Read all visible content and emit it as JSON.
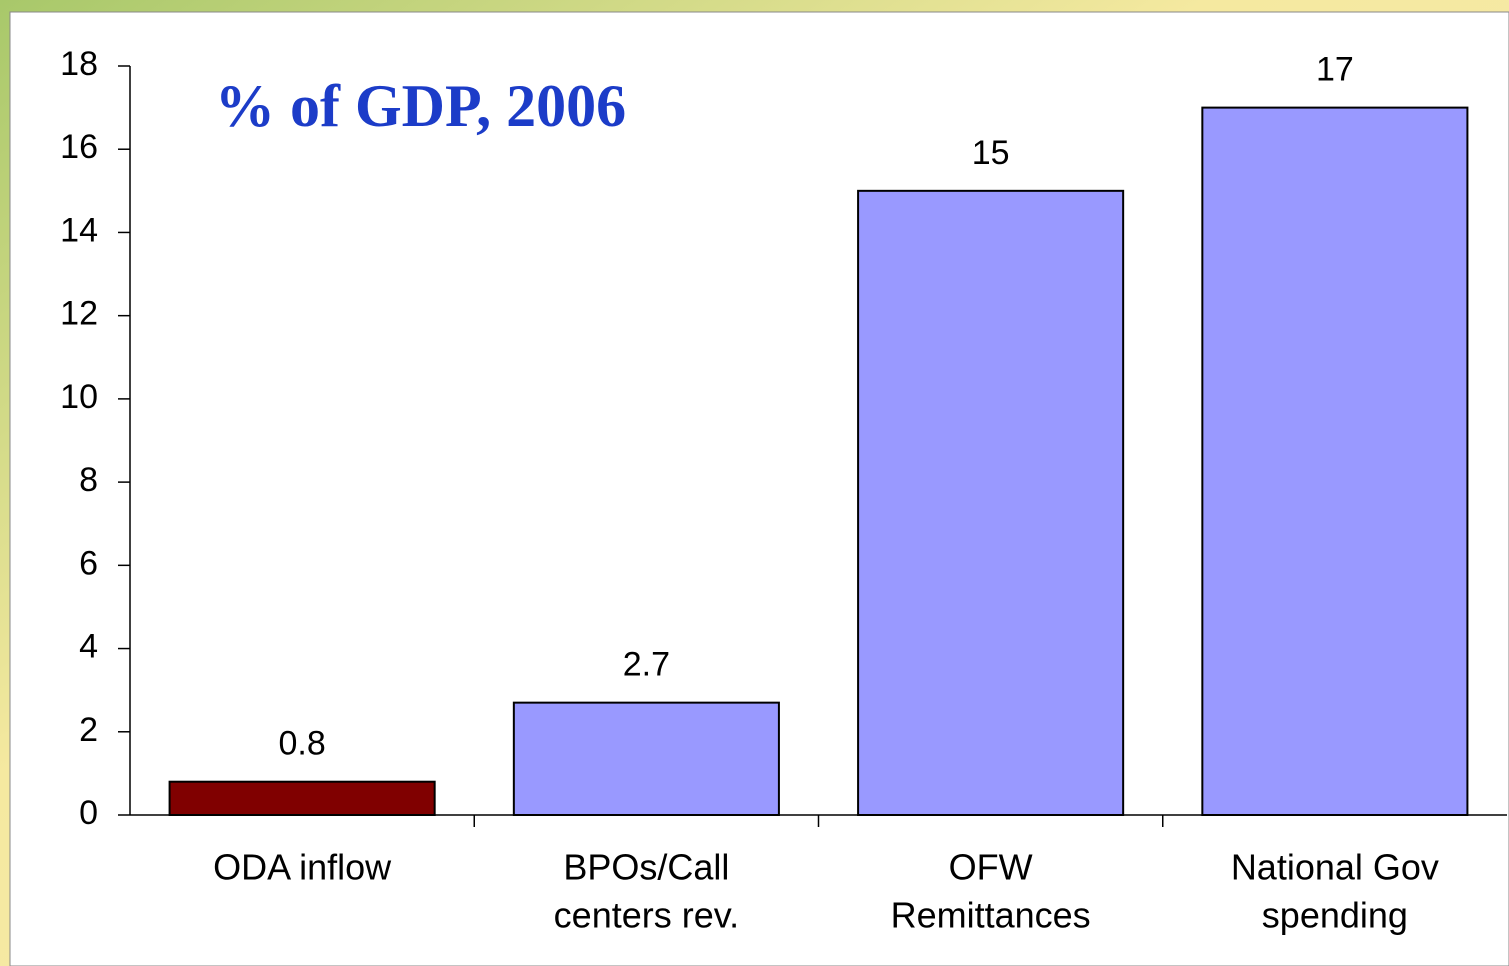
{
  "chart_data": {
    "type": "bar",
    "title": "% of GDP, 2006",
    "categories": [
      [
        "ODA inflow"
      ],
      [
        "BPOs/Call",
        "centers rev."
      ],
      [
        "OFW",
        "Remittances"
      ],
      [
        "National Gov",
        "spending"
      ]
    ],
    "values": [
      0.8,
      2.7,
      15,
      17
    ],
    "colors": [
      "#800000",
      "#9999ff",
      "#9999ff",
      "#9999ff"
    ],
    "ylim": [
      0,
      18
    ],
    "yticks": [
      0,
      2,
      4,
      6,
      8,
      10,
      12,
      14,
      16,
      18
    ],
    "grid": false
  }
}
